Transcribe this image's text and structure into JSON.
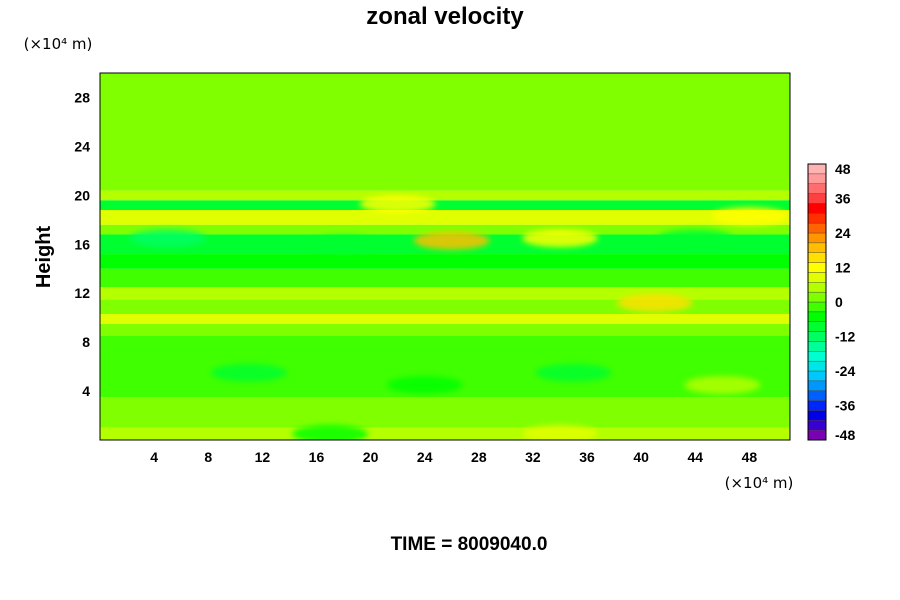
{
  "chart_data": {
    "type": "heatmap",
    "title": "zonal velocity",
    "ylabel": "Height",
    "xlabel": "",
    "x_unit": "(×10⁴ m)",
    "y_unit": "(×10⁴ m)",
    "xlim": [
      0,
      51
    ],
    "ylim": [
      0,
      30
    ],
    "x_ticks": [
      "4",
      "8",
      "12",
      "16",
      "20",
      "24",
      "28",
      "32",
      "36",
      "40",
      "44",
      "48"
    ],
    "y_ticks": [
      "4",
      "8",
      "12",
      "16",
      "20",
      "24",
      "28"
    ],
    "colorbar": {
      "min": -48,
      "max": 48,
      "step": 3,
      "tick_labels": [
        "48",
        "36",
        "24",
        "12",
        "0",
        "-12",
        "-24",
        "-36",
        "-48"
      ],
      "colors": [
        "#7a00b4",
        "#3a00d0",
        "#0000e6",
        "#0026ff",
        "#0060ff",
        "#0098ff",
        "#00c8ff",
        "#00e6e6",
        "#00ffd0",
        "#00ff9a",
        "#00ff60",
        "#00ff30",
        "#00ff00",
        "#40ff00",
        "#80ff00",
        "#b4ff00",
        "#e0ff00",
        "#ffff00",
        "#ffe000",
        "#ffbe00",
        "#ff9600",
        "#ff6400",
        "#ff3000",
        "#ff0000",
        "#ff4040",
        "#ff6e6e",
        "#ff9a9a",
        "#ffb4b4"
      ]
    },
    "bands": [
      {
        "y0": 0,
        "y1": 1.0,
        "value": 4
      },
      {
        "y0": 1.0,
        "y1": 3.5,
        "value": 0
      },
      {
        "y0": 3.5,
        "y1": 8.5,
        "value": -3
      },
      {
        "y0": 8.5,
        "y1": 9.5,
        "value": 1
      },
      {
        "y0": 9.5,
        "y1": 10.3,
        "value": 10
      },
      {
        "y0": 10.3,
        "y1": 11.5,
        "value": 2
      },
      {
        "y0": 11.5,
        "y1": 12.5,
        "value": 6
      },
      {
        "y0": 12.5,
        "y1": 14.0,
        "value": -2
      },
      {
        "y0": 14.0,
        "y1": 15.2,
        "value": -4
      },
      {
        "y0": 15.2,
        "y1": 16.8,
        "value": -9
      },
      {
        "y0": 16.8,
        "y1": 17.6,
        "value": 3
      },
      {
        "y0": 17.6,
        "y1": 18.8,
        "value": 10
      },
      {
        "y0": 18.8,
        "y1": 19.6,
        "value": -7
      },
      {
        "y0": 19.6,
        "y1": 20.4,
        "value": 5
      },
      {
        "y0": 20.4,
        "y1": 21.5,
        "value": 2
      },
      {
        "y0": 21.5,
        "y1": 30,
        "value": 0
      }
    ],
    "patches": [
      {
        "x": 11,
        "y": 5.5,
        "value": -7
      },
      {
        "x": 24,
        "y": 4.5,
        "value": -4
      },
      {
        "x": 35,
        "y": 5.5,
        "value": -7
      },
      {
        "x": 46,
        "y": 4.5,
        "value": 6
      },
      {
        "x": 5,
        "y": 16.5,
        "value": -11
      },
      {
        "x": 18,
        "y": 16,
        "value": -9
      },
      {
        "x": 44,
        "y": 16.5,
        "value": -9
      },
      {
        "x": 26,
        "y": 16.3,
        "value": 18
      },
      {
        "x": 34,
        "y": 16.5,
        "value": 12
      },
      {
        "x": 22,
        "y": 19.3,
        "value": 13
      },
      {
        "x": 48,
        "y": 18.3,
        "value": 13
      },
      {
        "x": 41,
        "y": 11.2,
        "value": 16
      },
      {
        "x": 17,
        "y": 0.5,
        "value": -6
      },
      {
        "x": 34,
        "y": 0.5,
        "value": 8
      }
    ]
  },
  "footer": {
    "time_label": "TIME = 8009040.0"
  }
}
